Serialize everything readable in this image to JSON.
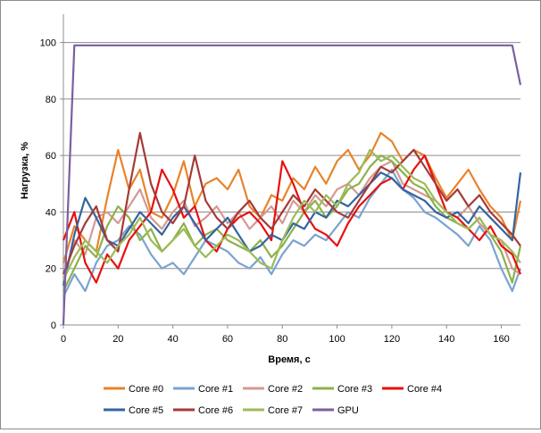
{
  "chart_data": {
    "type": "line",
    "xlabel": "Время, с",
    "ylabel": "Нагрузка, %",
    "xlim": [
      0,
      167
    ],
    "ylim": [
      0,
      110
    ],
    "x_ticks": [
      0,
      20,
      40,
      60,
      80,
      100,
      120,
      140,
      160
    ],
    "y_ticks": [
      0,
      20,
      40,
      60,
      80,
      100
    ],
    "grid": "horizontal",
    "legend_position": "bottom",
    "x": [
      0,
      4,
      8,
      12,
      16,
      20,
      24,
      28,
      32,
      36,
      40,
      44,
      48,
      52,
      56,
      60,
      64,
      68,
      72,
      76,
      80,
      84,
      88,
      92,
      96,
      100,
      104,
      108,
      112,
      116,
      120,
      124,
      128,
      132,
      136,
      140,
      144,
      148,
      152,
      156,
      160,
      164,
      167
    ],
    "series": [
      {
        "name": "Core #0",
        "color": "#e8832a",
        "values": [
          22,
          35,
          30,
          26,
          45,
          62,
          48,
          55,
          40,
          38,
          46,
          58,
          42,
          50,
          52,
          48,
          55,
          42,
          38,
          46,
          44,
          52,
          48,
          56,
          50,
          58,
          62,
          55,
          60,
          68,
          65,
          58,
          62,
          60,
          52,
          45,
          50,
          55,
          48,
          42,
          38,
          30,
          44
        ]
      },
      {
        "name": "Core #1",
        "color": "#7aa3cf",
        "values": [
          10,
          18,
          12,
          22,
          28,
          30,
          35,
          32,
          25,
          20,
          22,
          18,
          24,
          30,
          28,
          26,
          22,
          20,
          24,
          18,
          25,
          30,
          28,
          32,
          30,
          35,
          40,
          38,
          45,
          50,
          55,
          48,
          45,
          40,
          38,
          35,
          32,
          28,
          35,
          30,
          20,
          12,
          20
        ]
      },
      {
        "name": "Core #2",
        "color": "#d49a94",
        "values": [
          15,
          30,
          25,
          38,
          40,
          36,
          42,
          48,
          38,
          34,
          40,
          44,
          35,
          38,
          42,
          36,
          40,
          34,
          38,
          42,
          36,
          44,
          40,
          46,
          42,
          48,
          50,
          46,
          52,
          56,
          58,
          50,
          48,
          46,
          44,
          40,
          38,
          42,
          36,
          32,
          30,
          20,
          18
        ]
      },
      {
        "name": "Core #3",
        "color": "#8db14a",
        "values": [
          12,
          20,
          28,
          24,
          35,
          42,
          38,
          30,
          34,
          26,
          30,
          36,
          28,
          32,
          34,
          30,
          28,
          26,
          30,
          24,
          28,
          34,
          40,
          44,
          38,
          42,
          48,
          50,
          56,
          60,
          58,
          54,
          50,
          48,
          42,
          38,
          36,
          34,
          38,
          32,
          26,
          15,
          28
        ]
      },
      {
        "name": "Core #4",
        "color": "#e80f0f",
        "values": [
          30,
          40,
          22,
          15,
          25,
          20,
          30,
          35,
          40,
          55,
          48,
          38,
          42,
          30,
          26,
          34,
          38,
          40,
          36,
          30,
          58,
          50,
          40,
          34,
          32,
          28,
          36,
          42,
          46,
          50,
          52,
          48,
          55,
          60,
          50,
          40,
          38,
          34,
          30,
          35,
          28,
          25,
          18
        ]
      },
      {
        "name": "Core #5",
        "color": "#34649f",
        "values": [
          14,
          32,
          45,
          38,
          30,
          28,
          34,
          40,
          36,
          32,
          38,
          42,
          36,
          30,
          34,
          38,
          32,
          26,
          28,
          32,
          30,
          36,
          34,
          40,
          38,
          44,
          42,
          46,
          50,
          54,
          52,
          48,
          46,
          44,
          40,
          38,
          40,
          36,
          42,
          38,
          34,
          30,
          54
        ]
      },
      {
        "name": "Core #6",
        "color": "#a53a36",
        "values": [
          18,
          28,
          36,
          42,
          30,
          26,
          48,
          68,
          50,
          40,
          36,
          42,
          60,
          44,
          38,
          34,
          40,
          44,
          38,
          34,
          40,
          46,
          42,
          48,
          44,
          40,
          38,
          44,
          50,
          56,
          54,
          58,
          62,
          56,
          50,
          44,
          48,
          42,
          46,
          40,
          36,
          32,
          28
        ]
      },
      {
        "name": "Core #7",
        "color": "#9cbb58",
        "values": [
          16,
          24,
          30,
          26,
          22,
          28,
          32,
          38,
          30,
          26,
          30,
          34,
          28,
          24,
          28,
          32,
          30,
          26,
          22,
          20,
          30,
          38,
          44,
          40,
          46,
          42,
          50,
          54,
          62,
          58,
          60,
          56,
          52,
          50,
          44,
          40,
          36,
          34,
          38,
          32,
          30,
          26,
          22
        ]
      },
      {
        "name": "GPU",
        "color": "#7b5fa0",
        "values": [
          0,
          99,
          99,
          99,
          99,
          99,
          99,
          99,
          99,
          99,
          99,
          99,
          99,
          99,
          99,
          99,
          99,
          99,
          99,
          99,
          99,
          99,
          99,
          99,
          99,
          99,
          99,
          99,
          99,
          99,
          99,
          99,
          99,
          99,
          99,
          99,
          99,
          99,
          99,
          99,
          99,
          99,
          85
        ]
      }
    ]
  }
}
